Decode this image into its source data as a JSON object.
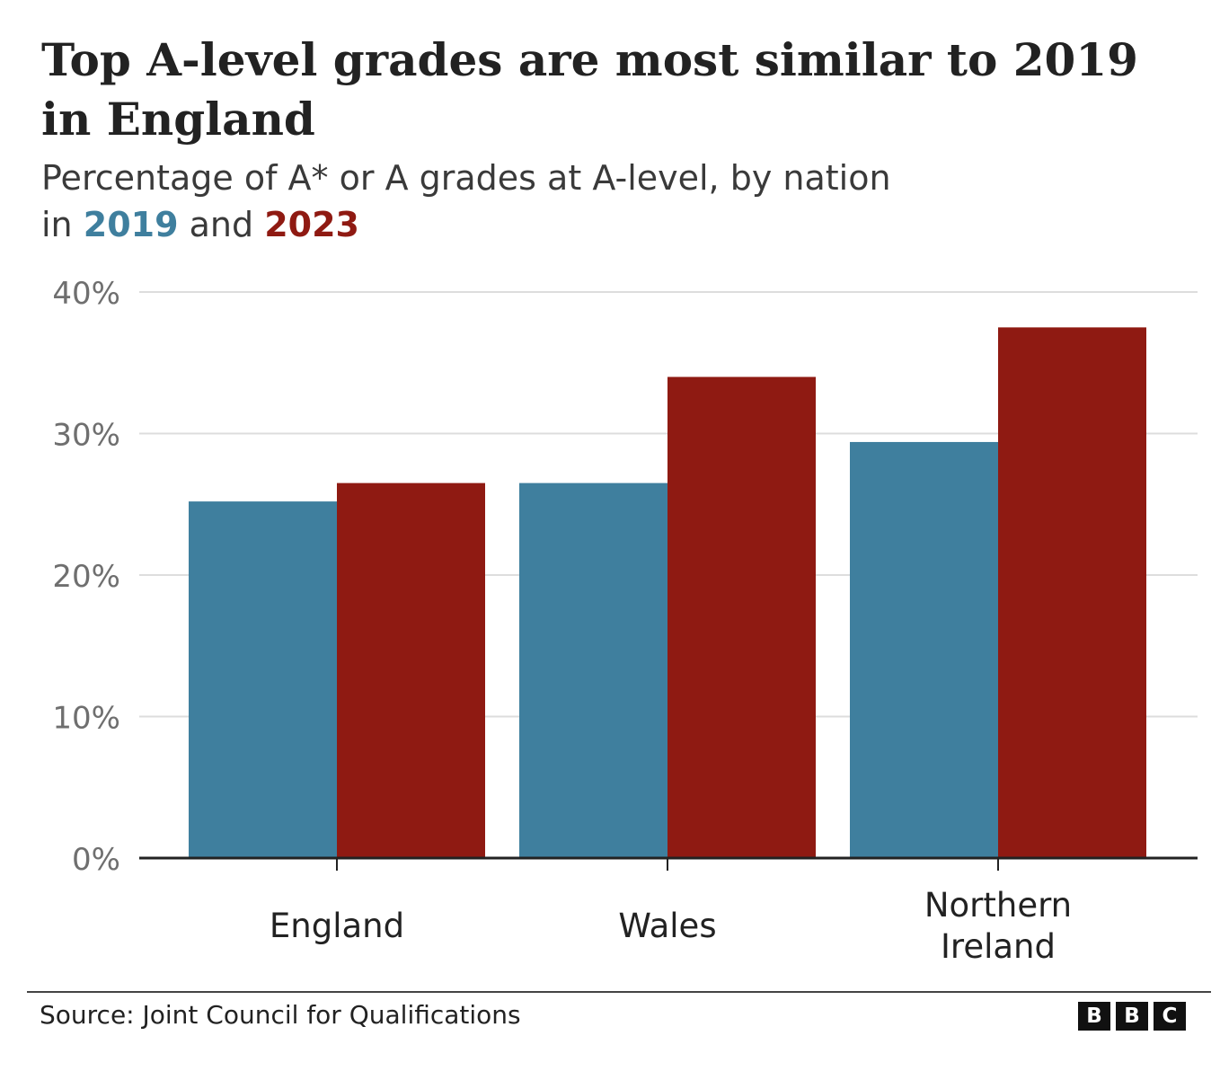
{
  "title": "Top A-level grades are most similar to 2019 in England",
  "subtitle_prefix": "Percentage of A* or A grades at A-level, by nation",
  "subtitle_in": "in",
  "subtitle_and": "and",
  "source": "Source: Joint Council for Qualifications",
  "logo": {
    "letters": [
      "B",
      "B",
      "C"
    ]
  },
  "colors": {
    "series_2019": "#3f7f9e",
    "series_2023": "#8f1a12",
    "grid": "#dddddd",
    "axis": "#222222",
    "tick_text": "#6f6f6f"
  },
  "chart_data": {
    "type": "bar",
    "title": "Top A-level grades are most similar to 2019 in England",
    "subtitle": "Percentage of A* or A grades at A-level, by nation in 2019 and 2023",
    "categories": [
      "England",
      "Wales",
      "Northern Ireland"
    ],
    "category_lines": [
      [
        "England"
      ],
      [
        "Wales"
      ],
      [
        "Northern",
        "Ireland"
      ]
    ],
    "series": [
      {
        "name": "2019",
        "color": "#3f7f9e",
        "values": [
          25.2,
          26.5,
          29.4
        ]
      },
      {
        "name": "2023",
        "color": "#8f1a12",
        "values": [
          26.5,
          34.0,
          37.5
        ]
      }
    ],
    "ylim": [
      0,
      40
    ],
    "yticks": [
      0,
      10,
      20,
      30,
      40
    ],
    "ytick_labels": [
      "0%",
      "10%",
      "20%",
      "30%",
      "40%"
    ],
    "grid": true,
    "legend": "in subtitle",
    "xlabel": "",
    "ylabel": ""
  }
}
